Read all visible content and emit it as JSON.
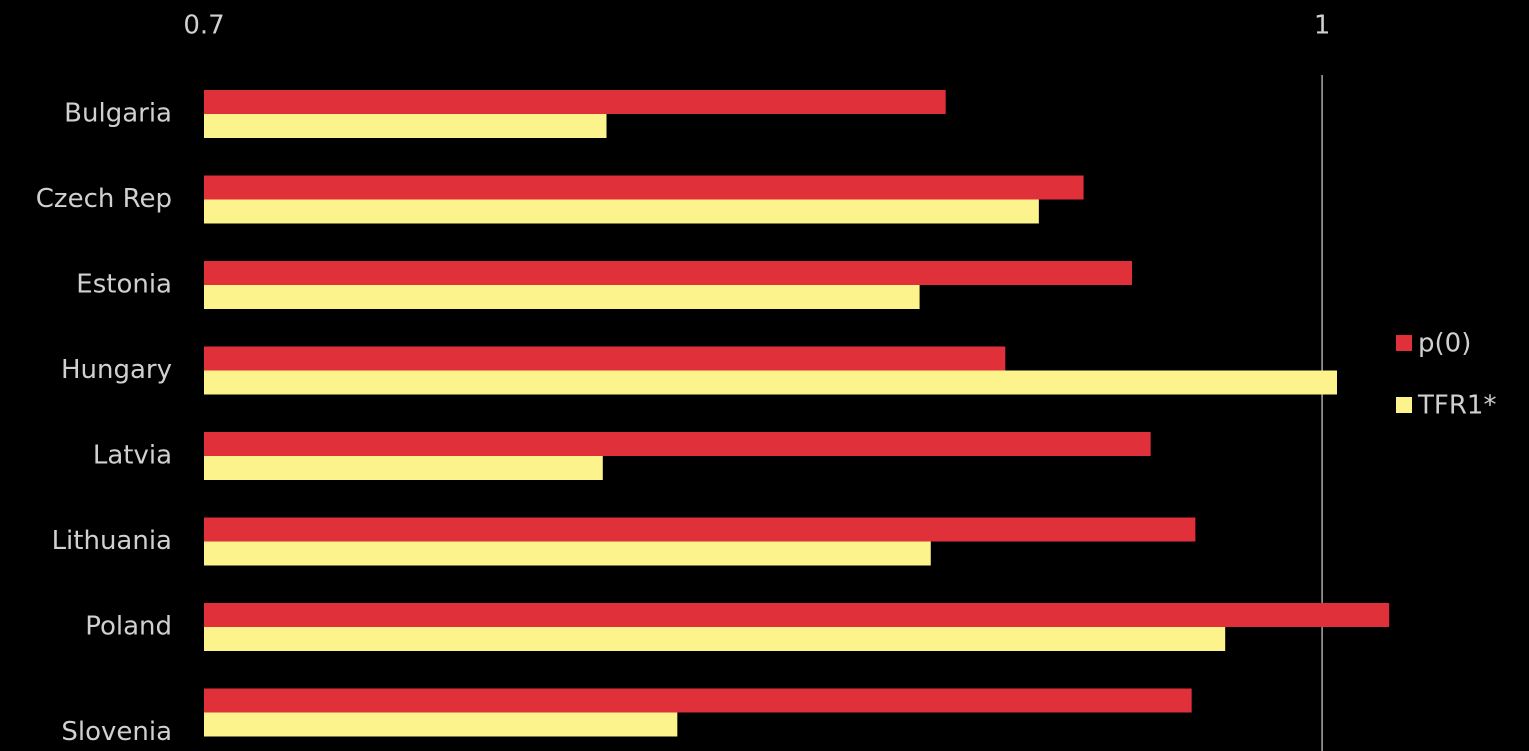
{
  "chart_data": {
    "type": "barh",
    "categories": [
      "Bulgaria",
      "Czech Rep",
      "Estonia",
      "Hungary",
      "Latvia",
      "Lithuania",
      "Poland",
      "Slovenia"
    ],
    "series": [
      {
        "name": "p(0)",
        "color": "#e0313a",
        "values": [
          0.899,
          0.936,
          0.949,
          0.915,
          0.954,
          0.966,
          1.018,
          0.965
        ]
      },
      {
        "name": "TFR1*",
        "color": "#fdf38c",
        "values": [
          0.808,
          0.924,
          0.892,
          1.004,
          0.807,
          0.895,
          0.974,
          0.827
        ]
      }
    ],
    "xlim": [
      0.7,
      1.05
    ],
    "xticks": [
      0.7,
      1
    ],
    "grid": true,
    "legend": "right"
  }
}
